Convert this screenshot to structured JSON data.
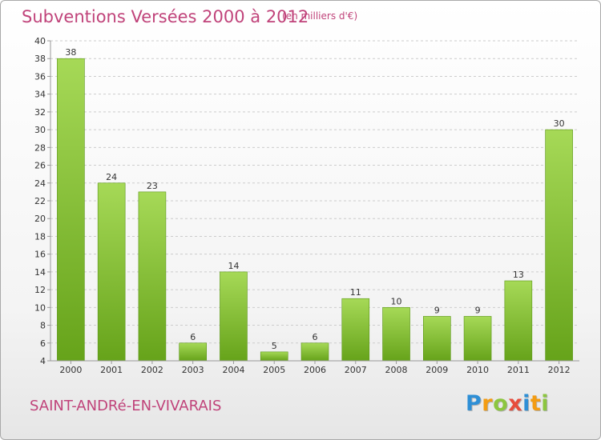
{
  "title": "Subventions Versées 2000 à 2012",
  "subtitle": "(en milliers d'€)",
  "location": "SAINT-ANDRé-EN-VIVARAIS",
  "logo": {
    "letters": [
      "P",
      "r",
      "o",
      "x",
      "i",
      "t",
      "i"
    ],
    "colors": [
      "#2e8fd6",
      "#f39c12",
      "#8cc63f",
      "#e74c3c",
      "#2e8fd6",
      "#f39c12",
      "#8cc63f"
    ]
  },
  "colors": {
    "accent": "#c0437a",
    "bar_light": "#a6d957",
    "bar_dark": "#66a31a",
    "grid": "#cccccc",
    "axis": "#999999"
  },
  "chart_data": {
    "type": "bar",
    "title": "Subventions Versées 2000 à 2012",
    "subtitle": "(en milliers d'€)",
    "categories": [
      "2000",
      "2001",
      "2002",
      "2003",
      "2004",
      "2005",
      "2006",
      "2007",
      "2008",
      "2009",
      "2010",
      "2011",
      "2012"
    ],
    "values": [
      38,
      24,
      23,
      6,
      14,
      5,
      6,
      11,
      10,
      9,
      9,
      13,
      30
    ],
    "ylim": [
      4,
      40
    ],
    "yticks": [
      4,
      6,
      8,
      10,
      12,
      14,
      16,
      18,
      20,
      22,
      24,
      26,
      28,
      30,
      32,
      34,
      36,
      38,
      40
    ],
    "grid": true,
    "xlabel": "",
    "ylabel": ""
  }
}
